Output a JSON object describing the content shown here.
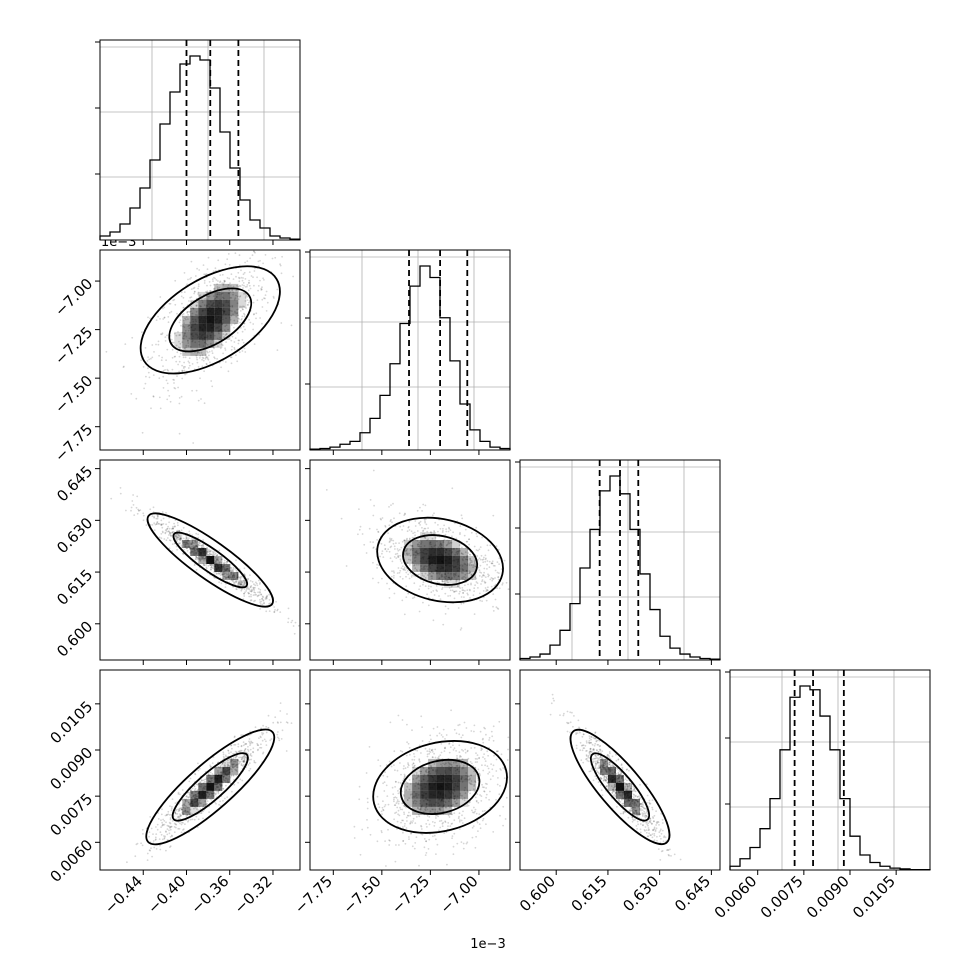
{
  "chart_data": {
    "type": "corner",
    "parameters": 4,
    "exponent_labels": {
      "row1_y": "1e−3",
      "col1_x": "1e−3"
    },
    "quantiles": [
      0.16,
      0.5,
      0.84
    ],
    "grid": true,
    "ticks": {
      "x": [
        [
          "−0.44",
          "−0.40",
          "−0.36",
          "−0.32"
        ],
        [
          "−7.75",
          "−7.50",
          "−7.25",
          "−7.00"
        ],
        [
          "0.600",
          "0.615",
          "0.630",
          "0.645"
        ],
        [
          "0.0060",
          "0.0075",
          "0.0090",
          "0.0105"
        ]
      ],
      "y": [
        [],
        [
          "−7.00",
          "−7.25",
          "−7.50",
          "−7.75"
        ],
        [
          "0.645",
          "0.630",
          "0.615",
          "0.600"
        ],
        [
          "0.0105",
          "0.0090",
          "0.0075",
          "0.0060"
        ]
      ]
    },
    "ranges": [
      [
        -0.00048,
        -0.000295
      ],
      [
        -7.87,
        -6.84
      ],
      [
        0.5895,
        0.6475
      ],
      [
        0.0051,
        0.0116
      ]
    ],
    "marginals": [
      {
        "median": -0.000378,
        "q16": -0.0004,
        "q84": -0.000352,
        "hist": [
          1,
          2,
          4,
          8,
          13,
          20,
          29,
          37,
          44,
          46,
          45,
          38,
          27,
          18,
          10,
          5,
          3,
          1,
          0.5,
          0.2
        ]
      },
      {
        "median": -7.2,
        "q16": -7.36,
        "q84": -7.06,
        "hist": [
          0.3,
          0.5,
          1,
          2,
          3,
          6,
          11,
          19,
          30,
          44,
          57,
          64,
          60,
          46,
          31,
          16,
          7,
          3,
          1,
          0.5
        ]
      },
      {
        "median": 0.6185,
        "q16": 0.6126,
        "q84": 0.6238,
        "hist": [
          0.5,
          1,
          2,
          5,
          10,
          19,
          31,
          44,
          57,
          62,
          56,
          44,
          29,
          17,
          8,
          4,
          2,
          1,
          0.5,
          0.3
        ]
      },
      {
        "median": 0.0078,
        "q16": 0.0072,
        "q84": 0.0088,
        "hist": [
          1,
          3,
          6,
          11,
          19,
          32,
          46,
          49,
          48,
          41,
          32,
          19,
          9,
          4,
          2,
          1,
          0.5,
          0.3,
          0.1,
          0.1
        ]
      }
    ]
  }
}
